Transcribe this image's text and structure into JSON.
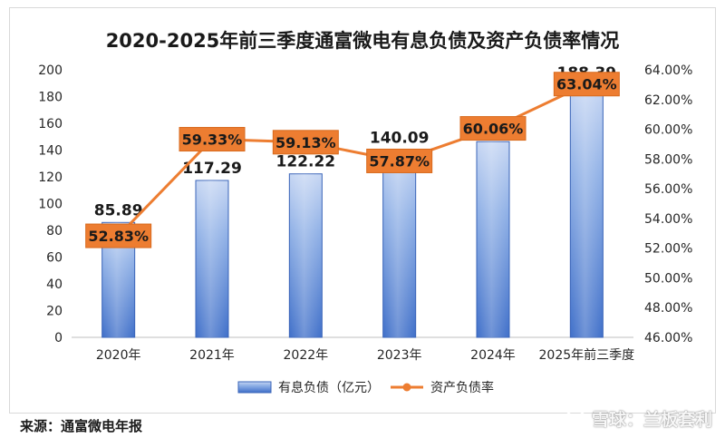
{
  "chart_data": {
    "type": "bar",
    "title": "2020-2025年前三季度通富微电有息负债及资产负债率情况",
    "categories": [
      "2020年",
      "2021年",
      "2022年",
      "2023年",
      "2024年",
      "2025年前三季度"
    ],
    "series": [
      {
        "name": "有息负债（亿元）",
        "type": "bar",
        "axis": "left",
        "values": [
          85.89,
          117.29,
          122.22,
          140.09,
          146.3,
          188.39
        ],
        "labels": [
          "85.89",
          "117.29",
          "122.22",
          "140.09",
          "146.3",
          "188.39"
        ],
        "color": "#4a78cf"
      },
      {
        "name": "资产负债率",
        "type": "line",
        "axis": "right",
        "values": [
          52.83,
          59.33,
          59.13,
          57.87,
          60.06,
          63.04
        ],
        "labels": [
          "52.83%",
          "59.33%",
          "59.13%",
          "57.87%",
          "60.06%",
          "63.04%"
        ],
        "color": "#ed7d31"
      }
    ],
    "y_left": {
      "min": 0,
      "max": 200,
      "ticks": [
        0,
        20,
        40,
        60,
        80,
        100,
        120,
        140,
        160,
        180,
        200
      ],
      "tick_labels": [
        "0",
        "20",
        "40",
        "60",
        "80",
        "100",
        "120",
        "140",
        "160",
        "180",
        "200"
      ]
    },
    "y_right": {
      "min": 46,
      "max": 64,
      "ticks": [
        46,
        48,
        50,
        52,
        54,
        56,
        58,
        60,
        62,
        64
      ],
      "tick_labels": [
        "46.00%",
        "48.00%",
        "50.00%",
        "52.00%",
        "54.00%",
        "56.00%",
        "58.00%",
        "60.00%",
        "62.00%",
        "64.00%"
      ]
    },
    "grid": false,
    "legend_position": "bottom"
  },
  "footer": {
    "source": "来源：通富微电年报"
  },
  "watermark": {
    "text": "雪球：兰板套利"
  }
}
